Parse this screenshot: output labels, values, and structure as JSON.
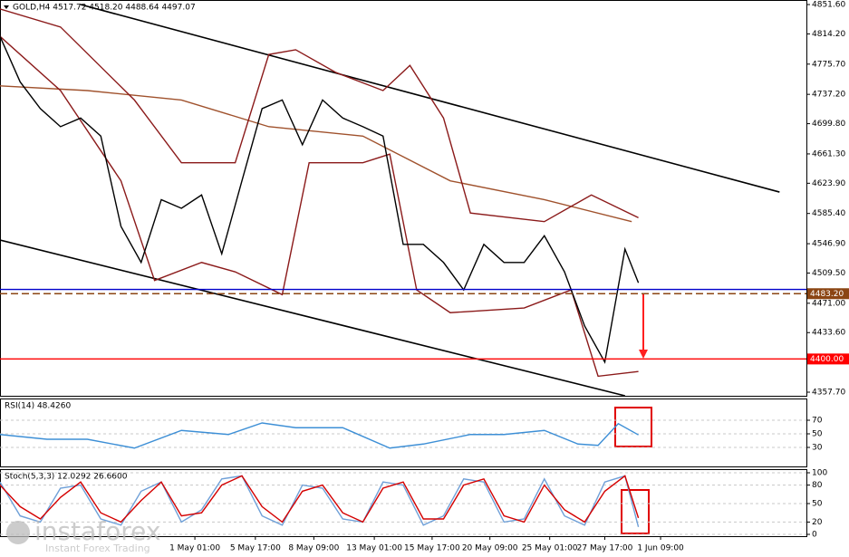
{
  "chart_data": [
    {
      "type": "line",
      "title": "GOLD,H4  4517.72 4518.20 4488.64 4497.07",
      "xlim": [
        0,
        120
      ],
      "ylim": [
        4353.1,
        4857.4
      ],
      "grid": false,
      "yticks": [
        {
          "value": 4851.6,
          "label": "4851.60"
        },
        {
          "value": 4814.2,
          "label": "4814.20"
        },
        {
          "value": 4775.7,
          "label": "4775.70"
        },
        {
          "value": 4737.2,
          "label": "4737.20"
        },
        {
          "value": 4699.8,
          "label": "4699.80"
        },
        {
          "value": 4661.3,
          "label": "4661.30"
        },
        {
          "value": 4623.9,
          "label": "4623.90"
        },
        {
          "value": 4585.4,
          "label": "4585.40"
        },
        {
          "value": 4546.9,
          "label": "4546.90"
        },
        {
          "value": 4509.5,
          "label": "4509.50"
        },
        {
          "value": 4471,
          "label": "4471.00"
        },
        {
          "value": 4433.6,
          "label": "4433.60"
        },
        {
          "value": 4357.7,
          "label": "4357.70"
        }
      ],
      "series": [
        {
          "color": "#a0522d",
          "x": [
            0,
            13,
            27,
            40,
            54,
            67,
            81,
            94
          ],
          "values": [
            4748,
            4742,
            4730,
            4696,
            4684,
            4627,
            4603,
            4575
          ]
        },
        {
          "color": "#8b1a1a",
          "x": [
            0,
            9,
            20,
            27,
            35,
            40,
            44,
            50,
            57,
            61,
            66,
            70,
            81,
            88,
            95
          ],
          "values": [
            4846,
            4823,
            4730,
            4650,
            4650,
            4788,
            4794,
            4765,
            4742,
            4774,
            4707,
            4586,
            4575,
            4609,
            4580
          ]
        },
        {
          "color": "#8b1a1a",
          "x": [
            0,
            9,
            18,
            23,
            30,
            35,
            42,
            46,
            54,
            58,
            62,
            67,
            78,
            85,
            89,
            95
          ],
          "values": [
            4811,
            4742,
            4627,
            4500,
            4523,
            4511,
            4482,
            4650,
            4650,
            4661,
            4488,
            4459,
            4465,
            4488,
            4378,
            4384
          ]
        },
        {
          "color": "#000000",
          "x": [
            0,
            3,
            6,
            9,
            12,
            15,
            18,
            21,
            24,
            27,
            30,
            33,
            36,
            39,
            42,
            45,
            48,
            51,
            54,
            57,
            60,
            63,
            66,
            69,
            72,
            75,
            78,
            81,
            84,
            87,
            90,
            93,
            95
          ],
          "values": [
            4811,
            4753,
            4719,
            4696,
            4707,
            4684,
            4569,
            4523,
            4603,
            4592,
            4609,
            4534,
            4627,
            4719,
            4730,
            4673,
            4730,
            4707,
            4696,
            4684,
            4546,
            4546,
            4523,
            4488,
            4546,
            4523,
            4523,
            4557,
            4511,
            4442,
            4396,
            4540,
            4497.07
          ]
        }
      ],
      "trendlines": [
        {
          "color": "#000000",
          "x": [
            12,
            116
          ],
          "values": [
            4851.6,
            4612.7
          ]
        },
        {
          "color": "#000000",
          "x": [
            0,
            93
          ],
          "values": [
            4551.6,
            4353.1
          ]
        }
      ],
      "hlines": [
        {
          "value": 4488.64,
          "color": "#0000cc"
        },
        {
          "value": 4483.2,
          "label": "4483.20",
          "color": "#8b4513",
          "dashed": true
        },
        {
          "value": 4400,
          "label": "4400.00",
          "color": "#ff0000"
        }
      ]
    },
    {
      "type": "line",
      "title": "RSI(14) 48.4260",
      "ylim": [
        0,
        100
      ],
      "yticks": [
        70,
        50,
        30
      ],
      "grid": true,
      "series": [
        {
          "color": "#3d8fd6",
          "x": [
            0,
            7,
            13,
            20,
            27,
            34,
            39,
            44,
            51,
            58,
            63,
            70,
            75,
            81,
            86,
            89,
            92,
            95
          ],
          "values": [
            49,
            42,
            42,
            29,
            55,
            49,
            66,
            59,
            59,
            29,
            35,
            49,
            49,
            55,
            35,
            33,
            65,
            48.426
          ]
        }
      ]
    },
    {
      "type": "line",
      "title": "Stoch(5,3,3) 12.0292 26.6600",
      "ylim": [
        0,
        100
      ],
      "yticks": [
        100,
        80,
        50,
        20,
        0
      ],
      "grid": true,
      "series": [
        {
          "color": "#6fa0d8",
          "x": [
            0,
            3,
            6,
            9,
            12,
            15,
            18,
            21,
            24,
            27,
            30,
            33,
            36,
            39,
            42,
            45,
            48,
            51,
            54,
            57,
            60,
            63,
            66,
            69,
            72,
            75,
            78,
            81,
            84,
            87,
            90,
            93,
            95
          ],
          "values": [
            85,
            30,
            20,
            75,
            80,
            25,
            15,
            70,
            85,
            20,
            40,
            90,
            95,
            30,
            15,
            80,
            75,
            25,
            20,
            85,
            80,
            15,
            30,
            90,
            85,
            20,
            25,
            90,
            30,
            15,
            85,
            95,
            12.03
          ]
        },
        {
          "color": "#d40000",
          "x": [
            0,
            3,
            6,
            9,
            12,
            15,
            18,
            21,
            24,
            27,
            30,
            33,
            36,
            39,
            42,
            45,
            48,
            51,
            54,
            57,
            60,
            63,
            66,
            69,
            72,
            75,
            78,
            81,
            84,
            87,
            90,
            93,
            95
          ],
          "values": [
            80,
            45,
            25,
            60,
            85,
            35,
            20,
            55,
            85,
            30,
            35,
            80,
            95,
            45,
            20,
            70,
            80,
            35,
            20,
            75,
            85,
            25,
            25,
            80,
            90,
            30,
            20,
            80,
            40,
            20,
            70,
            95,
            26.66
          ]
        }
      ],
      "xticks": [
        {
          "value": 29,
          "label": "1 May 01:00"
        },
        {
          "value": 38,
          "label": "5 May 17:00"
        },
        {
          "value": 46.7,
          "label": "8 May 09:00"
        },
        {
          "value": 55.7,
          "label": "13 May 01:00"
        },
        {
          "value": 64.3,
          "label": "15 May 17:00"
        },
        {
          "value": 72.9,
          "label": "20 May 09:00"
        },
        {
          "value": 81.8,
          "label": "25 May 01:00"
        },
        {
          "value": 90,
          "label": "27 May 17:00"
        },
        {
          "value": 98.3,
          "label": "1 Jun 09:00"
        }
      ]
    }
  ],
  "watermark": {
    "brand": "instaforex",
    "tagline": "Instant Forex Trading"
  }
}
